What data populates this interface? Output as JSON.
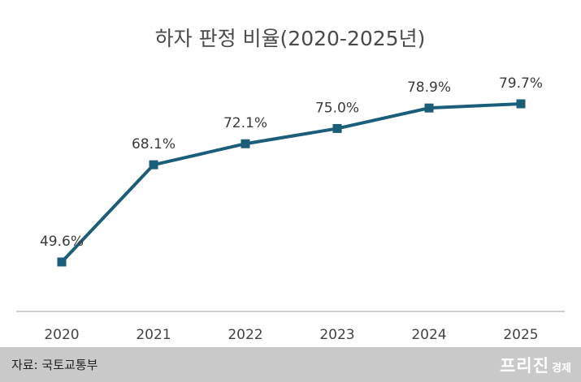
{
  "chart_data": {
    "type": "line",
    "title": "하자 판정 비율(2020-2025년)",
    "categories": [
      "2020",
      "2021",
      "2022",
      "2023",
      "2024",
      "2025"
    ],
    "values": [
      49.6,
      68.1,
      72.1,
      75.0,
      78.9,
      79.7
    ],
    "data_labels": [
      "49.6%",
      "68.1%",
      "72.1%",
      "75.0%",
      "78.9%",
      "79.7%"
    ],
    "unit": "%",
    "ylim": [
      40,
      85
    ],
    "grid": false,
    "legend": "none",
    "series_color": "#1b5e7a",
    "marker": "square"
  },
  "footer": {
    "source": "자료: 국토교통부",
    "brand_main": "프리진",
    "brand_sub": "경제"
  }
}
